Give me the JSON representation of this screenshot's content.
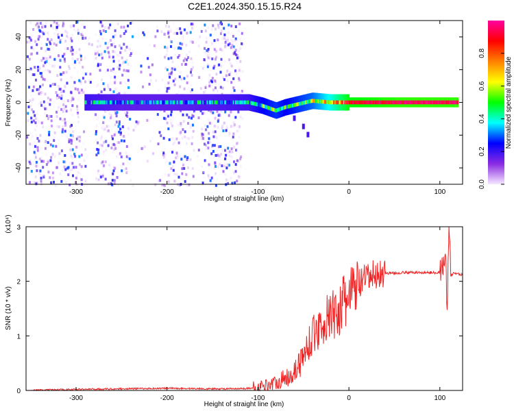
{
  "chart_data": [
    {
      "type": "heatmap",
      "title": "C2E1.2024.350.15.15.R24",
      "xlabel": "Height of straight line (km)",
      "ylabel": "Frequency (Hz)",
      "xlim": [
        -355,
        125
      ],
      "ylim": [
        -50,
        50
      ],
      "x_ticks": [
        -300,
        -200,
        -100,
        0,
        100
      ],
      "x_tick_labels": [
        "-300",
        "-200",
        "-100",
        "0",
        "100"
      ],
      "y_ticks": [
        -40,
        -20,
        0,
        20,
        40
      ],
      "y_tick_labels": [
        "-40",
        "-20",
        "0",
        "20",
        "40"
      ],
      "colorbar": {
        "label": "Normalized spectral amplitude",
        "range": [
          0,
          1
        ],
        "ticks": [
          0.0,
          0.2,
          0.4,
          0.6,
          0.8
        ],
        "tick_labels": [
          "0.0",
          "0.2",
          "0.4",
          "0.6",
          "0.8"
        ],
        "colors": [
          "#f6e8ff",
          "#8a2be2",
          "#0000ff",
          "#00ffff",
          "#00ff00",
          "#ffff00",
          "#ff8000",
          "#ff0000",
          "#ff00a0"
        ]
      },
      "features": {
        "noise_region_x": [
          -355,
          -118
        ],
        "noise_gap_x": [
          [
            -290,
            -280
          ],
          [
            -240,
            -205
          ],
          [
            -170,
            -163
          ]
        ],
        "ridge": [
          {
            "x": -290,
            "y": 0,
            "amp": 0.35
          },
          {
            "x": -250,
            "y": 0,
            "amp": 0.3
          },
          {
            "x": -200,
            "y": 0,
            "amp": 0.3
          },
          {
            "x": -150,
            "y": 0,
            "amp": 0.32
          },
          {
            "x": -110,
            "y": 0,
            "amp": 0.35
          },
          {
            "x": -95,
            "y": -2,
            "amp": 0.45
          },
          {
            "x": -80,
            "y": -5,
            "amp": 0.5
          },
          {
            "x": -70,
            "y": -3,
            "amp": 0.45
          },
          {
            "x": -55,
            "y": -1,
            "amp": 0.5
          },
          {
            "x": -40,
            "y": 1,
            "amp": 0.55
          },
          {
            "x": -20,
            "y": 0,
            "amp": 0.7
          },
          {
            "x": 0,
            "y": 0,
            "amp": 0.9
          },
          {
            "x": 60,
            "y": 0,
            "amp": 0.95
          },
          {
            "x": 120,
            "y": 0,
            "amp": 0.95
          }
        ],
        "trail": [
          {
            "x": -60,
            "y": -10
          },
          {
            "x": -50,
            "y": -15
          },
          {
            "x": -45,
            "y": -20
          }
        ]
      }
    },
    {
      "type": "line",
      "xlabel": "Height of straight line (km)",
      "ylabel": "SNR (10 * v/v)",
      "y_multiplier": "(x10⁴)",
      "xlim": [
        -355,
        125
      ],
      "ylim": [
        0,
        3
      ],
      "x_ticks": [
        -300,
        -200,
        -100,
        0,
        100
      ],
      "x_tick_labels": [
        "-300",
        "-200",
        "-100",
        "0",
        "100"
      ],
      "y_ticks": [
        0,
        1,
        2,
        3
      ],
      "y_tick_labels": [
        "0",
        "1",
        "2",
        "3"
      ],
      "color": "#ee2222",
      "series": [
        {
          "x": [
            -355,
            -300,
            -250,
            -200,
            -150,
            -120,
            -100,
            -90,
            -80,
            -70,
            -60,
            -50,
            -45,
            -40,
            -35,
            -30,
            -25,
            -20,
            -15,
            -10,
            -5,
            0,
            5,
            10,
            15,
            20,
            25,
            30,
            35,
            40,
            50,
            60,
            70,
            80,
            90,
            95,
            100,
            104,
            106,
            108,
            110,
            112,
            115,
            120,
            125
          ],
          "y": [
            0.0,
            0.02,
            0.03,
            0.04,
            0.03,
            0.03,
            0.05,
            0.1,
            0.15,
            0.22,
            0.35,
            0.6,
            0.85,
            1.0,
            1.1,
            1.2,
            1.3,
            1.35,
            1.4,
            1.5,
            1.6,
            1.7,
            1.82,
            1.92,
            2.0,
            2.05,
            2.1,
            2.12,
            2.14,
            2.15,
            2.15,
            2.16,
            2.16,
            2.16,
            2.16,
            2.16,
            2.17,
            2.3,
            2.6,
            1.4,
            3.0,
            2.1,
            2.15,
            2.14,
            2.12
          ]
        }
      ]
    }
  ]
}
